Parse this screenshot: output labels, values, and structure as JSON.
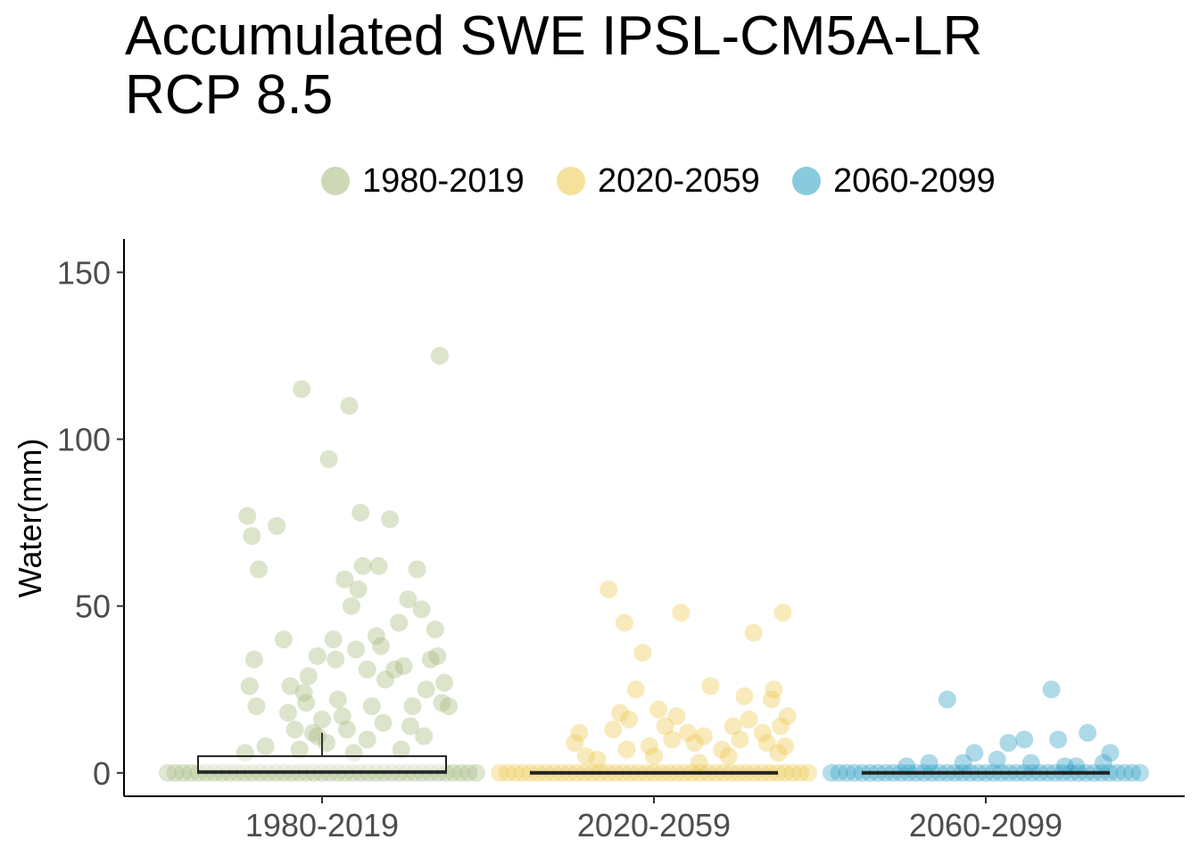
{
  "chart_data": {
    "type": "scatter",
    "title": "Accumulated SWE IPSL-CM5A-LR\nRCP 8.5",
    "title_lines": [
      "Accumulated SWE IPSL-CM5A-LR",
      "RCP 8.5"
    ],
    "xlabel": "",
    "ylabel": "Water(mm)",
    "ylim": [
      -7,
      160
    ],
    "yticks": [
      0,
      50,
      100,
      150
    ],
    "categories": [
      "1980-2019",
      "2020-2059",
      "2060-2099"
    ],
    "legend_position": "top",
    "grid": false,
    "series": [
      {
        "name": "1980-2019",
        "color": "#a3b87a",
        "box": {
          "q1": 0,
          "median": 0.5,
          "q3": 5,
          "whisker_low": 0,
          "whisker_high": 12
        },
        "points": [
          {
            "x": -0.33,
            "y": 77
          },
          {
            "x": -0.31,
            "y": 71
          },
          {
            "x": -0.28,
            "y": 61
          },
          {
            "x": -0.3,
            "y": 34
          },
          {
            "x": -0.32,
            "y": 26
          },
          {
            "x": -0.29,
            "y": 20
          },
          {
            "x": -0.2,
            "y": 74
          },
          {
            "x": -0.17,
            "y": 40
          },
          {
            "x": -0.15,
            "y": 18
          },
          {
            "x": -0.14,
            "y": 26
          },
          {
            "x": -0.12,
            "y": 13
          },
          {
            "x": -0.09,
            "y": 115
          },
          {
            "x": -0.08,
            "y": 24
          },
          {
            "x": -0.07,
            "y": 21
          },
          {
            "x": -0.06,
            "y": 29
          },
          {
            "x": -0.04,
            "y": 12
          },
          {
            "x": -0.02,
            "y": 35
          },
          {
            "x": 0.0,
            "y": 16
          },
          {
            "x": 0.03,
            "y": 94
          },
          {
            "x": 0.05,
            "y": 40
          },
          {
            "x": 0.06,
            "y": 34
          },
          {
            "x": 0.07,
            "y": 22
          },
          {
            "x": 0.09,
            "y": 17
          },
          {
            "x": 0.1,
            "y": 58
          },
          {
            "x": 0.12,
            "y": 110
          },
          {
            "x": 0.13,
            "y": 50
          },
          {
            "x": 0.15,
            "y": 37
          },
          {
            "x": 0.16,
            "y": 55
          },
          {
            "x": 0.17,
            "y": 78
          },
          {
            "x": 0.18,
            "y": 62
          },
          {
            "x": 0.2,
            "y": 31
          },
          {
            "x": 0.22,
            "y": 20
          },
          {
            "x": 0.24,
            "y": 41
          },
          {
            "x": 0.25,
            "y": 62
          },
          {
            "x": 0.26,
            "y": 38
          },
          {
            "x": 0.28,
            "y": 28
          },
          {
            "x": 0.3,
            "y": 76
          },
          {
            "x": 0.32,
            "y": 31
          },
          {
            "x": 0.34,
            "y": 45
          },
          {
            "x": 0.36,
            "y": 32
          },
          {
            "x": 0.38,
            "y": 52
          },
          {
            "x": 0.4,
            "y": 20
          },
          {
            "x": 0.42,
            "y": 61
          },
          {
            "x": 0.44,
            "y": 49
          },
          {
            "x": 0.46,
            "y": 25
          },
          {
            "x": 0.48,
            "y": 34
          },
          {
            "x": 0.5,
            "y": 43
          },
          {
            "x": 0.52,
            "y": 125
          },
          {
            "x": 0.54,
            "y": 27
          },
          {
            "x": 0.56,
            "y": 20
          },
          {
            "x": 0.53,
            "y": 21
          },
          {
            "x": 0.51,
            "y": 35
          },
          {
            "x": -0.25,
            "y": 8
          },
          {
            "x": -0.1,
            "y": 7
          },
          {
            "x": 0.02,
            "y": 9
          },
          {
            "x": 0.2,
            "y": 10
          },
          {
            "x": 0.35,
            "y": 7
          },
          {
            "x": 0.45,
            "y": 11
          },
          {
            "x": -0.34,
            "y": 6
          },
          {
            "x": 0.11,
            "y": 13
          },
          {
            "x": 0.27,
            "y": 15
          },
          {
            "x": 0.39,
            "y": 14
          },
          {
            "x": -0.02,
            "y": 11
          },
          {
            "x": 0.14,
            "y": 6
          }
        ]
      },
      {
        "name": "2020-2059",
        "color": "#ecc94b",
        "box": {
          "q1": 0,
          "median": 0,
          "q3": 0,
          "whisker_low": 0,
          "whisker_high": 0
        },
        "points": [
          {
            "x": -0.35,
            "y": 9
          },
          {
            "x": -0.33,
            "y": 12
          },
          {
            "x": -0.3,
            "y": 5
          },
          {
            "x": -0.2,
            "y": 55
          },
          {
            "x": -0.18,
            "y": 13
          },
          {
            "x": -0.15,
            "y": 18
          },
          {
            "x": -0.13,
            "y": 45
          },
          {
            "x": -0.11,
            "y": 16
          },
          {
            "x": -0.08,
            "y": 25
          },
          {
            "x": -0.05,
            "y": 36
          },
          {
            "x": -0.02,
            "y": 8
          },
          {
            "x": 0.02,
            "y": 19
          },
          {
            "x": 0.05,
            "y": 14
          },
          {
            "x": 0.08,
            "y": 10
          },
          {
            "x": 0.1,
            "y": 17
          },
          {
            "x": 0.12,
            "y": 48
          },
          {
            "x": 0.15,
            "y": 12
          },
          {
            "x": 0.18,
            "y": 9
          },
          {
            "x": 0.22,
            "y": 11
          },
          {
            "x": 0.25,
            "y": 26
          },
          {
            "x": 0.3,
            "y": 7
          },
          {
            "x": 0.35,
            "y": 14
          },
          {
            "x": 0.38,
            "y": 10
          },
          {
            "x": 0.4,
            "y": 23
          },
          {
            "x": 0.42,
            "y": 16
          },
          {
            "x": 0.44,
            "y": 42
          },
          {
            "x": 0.48,
            "y": 12
          },
          {
            "x": 0.5,
            "y": 9
          },
          {
            "x": 0.52,
            "y": 22
          },
          {
            "x": 0.53,
            "y": 25
          },
          {
            "x": 0.55,
            "y": 6
          },
          {
            "x": 0.57,
            "y": 48
          },
          {
            "x": 0.59,
            "y": 17
          },
          {
            "x": 0.56,
            "y": 14
          },
          {
            "x": 0.58,
            "y": 8
          },
          {
            "x": -0.25,
            "y": 4
          },
          {
            "x": 0.0,
            "y": 5
          },
          {
            "x": 0.2,
            "y": 3
          },
          {
            "x": 0.33,
            "y": 5
          },
          {
            "x": -0.12,
            "y": 7
          }
        ]
      },
      {
        "name": "2060-2099",
        "color": "#2a9fc2",
        "box": {
          "q1": 0,
          "median": 0,
          "q3": 0,
          "whisker_low": 0,
          "whisker_high": 0
        },
        "points": [
          {
            "x": -0.17,
            "y": 22
          },
          {
            "x": 0.29,
            "y": 25
          },
          {
            "x": 0.1,
            "y": 9
          },
          {
            "x": 0.17,
            "y": 10
          },
          {
            "x": 0.32,
            "y": 10
          },
          {
            "x": 0.45,
            "y": 12
          },
          {
            "x": 0.55,
            "y": 6
          },
          {
            "x": -0.05,
            "y": 6
          },
          {
            "x": 0.05,
            "y": 4
          },
          {
            "x": -0.25,
            "y": 3
          },
          {
            "x": 0.2,
            "y": 3
          },
          {
            "x": 0.35,
            "y": 2
          },
          {
            "x": -0.35,
            "y": 2
          },
          {
            "x": 0.52,
            "y": 3
          },
          {
            "x": 0.4,
            "y": 2
          },
          {
            "x": -0.1,
            "y": 3
          }
        ]
      }
    ]
  }
}
